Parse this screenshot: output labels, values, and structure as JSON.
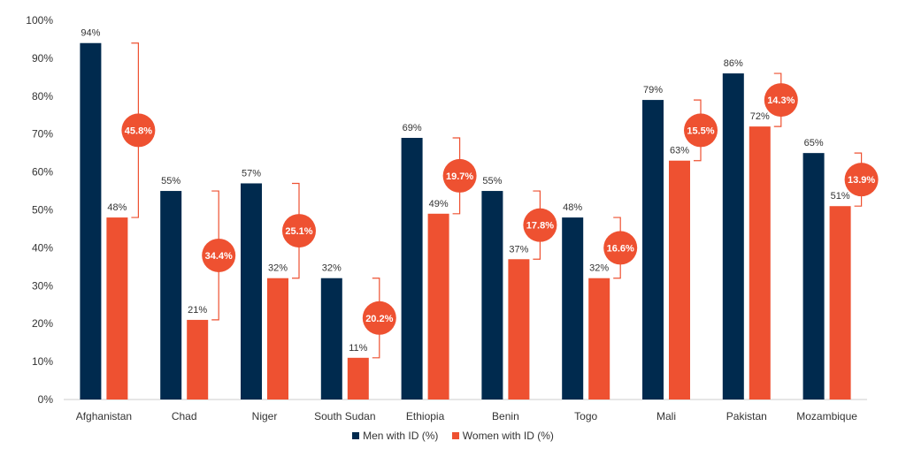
{
  "chart_data": {
    "type": "bar",
    "categories": [
      "Afghanistan",
      "Chad",
      "Niger",
      "South Sudan",
      "Ethiopia",
      "Benin",
      "Togo",
      "Mali",
      "Pakistan",
      "Mozambique"
    ],
    "series": [
      {
        "name": "Men with ID (%)",
        "color": "#002a4e",
        "values": [
          94,
          55,
          57,
          32,
          69,
          55,
          48,
          79,
          86,
          65
        ],
        "labels": [
          "94%",
          "55%",
          "57%",
          "32%",
          "69%",
          "55%",
          "48%",
          "79%",
          "86%",
          "65%"
        ]
      },
      {
        "name": "Women with ID (%)",
        "color": "#ee5131",
        "values": [
          48,
          21,
          32,
          11,
          49,
          37,
          32,
          63,
          72,
          51
        ],
        "labels": [
          "48%",
          "21%",
          "32%",
          "11%",
          "49%",
          "37%",
          "32%",
          "63%",
          "72%",
          "51%"
        ]
      }
    ],
    "gap_labels": [
      "45.8%",
      "34.4%",
      "25.1%",
      "20.2%",
      "19.7%",
      "17.8%",
      "16.6%",
      "15.5%",
      "14.3%",
      "13.9%"
    ],
    "gap_color": "#ee5131",
    "ylim": [
      0,
      100
    ],
    "yticks": [
      0,
      10,
      20,
      30,
      40,
      50,
      60,
      70,
      80,
      90,
      100
    ],
    "ytick_labels": [
      "0%",
      "10%",
      "20%",
      "30%",
      "40%",
      "50%",
      "60%",
      "70%",
      "80%",
      "90%",
      "100%"
    ],
    "grid": false,
    "legend_position": "bottom",
    "title": "",
    "xlabel": "",
    "ylabel": ""
  }
}
